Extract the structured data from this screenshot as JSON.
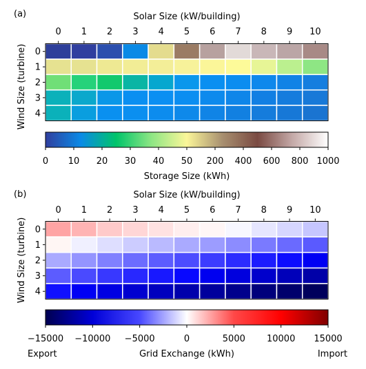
{
  "chart_data": [
    {
      "type": "heatmap",
      "panel_label": "(a)",
      "xlabel": "Solar Size (kW/building)",
      "ylabel": "Wind Size (turbine)",
      "x_ticks": [
        "0",
        "1",
        "2",
        "3",
        "4",
        "5",
        "6",
        "7",
        "8",
        "9",
        "10"
      ],
      "y_ticks": [
        "0",
        "1",
        "2",
        "3",
        "4"
      ],
      "cell_colors": [
        [
          "#2e3f9a",
          "#303f9f",
          "#2b4fae",
          "#0a8ae6",
          "#e4dc8e",
          "#9b7c64",
          "#b7a19f",
          "#e2dad8",
          "#c9b7b8",
          "#bba6a6",
          "#a88a86"
        ],
        [
          "#e6e291",
          "#e6e291",
          "#eee993",
          "#f2ed96",
          "#f3ee98",
          "#f7f29a",
          "#fbf699",
          "#fdfa99",
          "#e7f596",
          "#bbf08f",
          "#8ee684"
        ],
        [
          "#70df77",
          "#25d27a",
          "#12c96d",
          "#0ab5a4",
          "#06a7cf",
          "#0a97ec",
          "#0a8ff1",
          "#0b8df0",
          "#0e88ec",
          "#1183e6",
          "#157edf"
        ],
        [
          "#0bb1ba",
          "#0ba8cc",
          "#0a97e8",
          "#0a8ff1",
          "#0b8ff2",
          "#0b8ef1",
          "#0d8aed",
          "#0f86e9",
          "#127fe3",
          "#157cdd",
          "#1879d8"
        ],
        [
          "#0bb1ba",
          "#0a9edf",
          "#0a90f0",
          "#0b8ff0",
          "#0c8cee",
          "#0e89ea",
          "#1084e6",
          "#1280e1",
          "#157cdc",
          "#1778d7",
          "#1a74d1"
        ]
      ],
      "colorbar": {
        "label": "Storage Size (kWh)",
        "tick_labels": [
          "0",
          "10",
          "20",
          "30",
          "40",
          "50",
          "200",
          "400",
          "600",
          "800",
          "1000"
        ],
        "colors": [
          "#303f9f",
          "#0a8ae6",
          "#00c46a",
          "#8ee684",
          "#fbf699",
          "#a89070",
          "#7a4a42",
          "#c5aaa8",
          "#ffffff"
        ]
      }
    },
    {
      "type": "heatmap",
      "panel_label": "(b)",
      "xlabel": "Solar Size (kW/building)",
      "ylabel": "Wind Size (turbine)",
      "x_ticks": [
        "0",
        "1",
        "2",
        "3",
        "4",
        "5",
        "6",
        "7",
        "8",
        "9",
        "10"
      ],
      "y_ticks": [
        "0",
        "1",
        "2",
        "3",
        "4"
      ],
      "cell_colors": [
        [
          "#ffa4a4",
          "#ffb4b4",
          "#ffcaca",
          "#ffd6d6",
          "#ffe2e2",
          "#ffeeee",
          "#fff6f6",
          "#f7f7ff",
          "#e6e6ff",
          "#d6d6ff",
          "#c6c6ff"
        ],
        [
          "#fff6f4",
          "#f0f0ff",
          "#dedeff",
          "#ccccff",
          "#babaff",
          "#aaaaff",
          "#9c9cff",
          "#8c8cff",
          "#7a7aff",
          "#6a6aff",
          "#5a5aff"
        ],
        [
          "#aaaaff",
          "#9494ff",
          "#8080ff",
          "#6c6cff",
          "#5c5cff",
          "#4c4cff",
          "#3c3cff",
          "#2c2cff",
          "#1c1cff",
          "#0c0cff",
          "#0000f4"
        ],
        [
          "#5c5cff",
          "#4a4aff",
          "#3838ff",
          "#2828ff",
          "#1818ff",
          "#0808ff",
          "#0000f0",
          "#0000de",
          "#0000cc",
          "#0000ba",
          "#0000a8"
        ],
        [
          "#1010ff",
          "#0000f4",
          "#0000e2",
          "#0000d0",
          "#0000be",
          "#0000ac",
          "#00009c",
          "#00008c",
          "#00007c",
          "#00006c",
          "#00005c"
        ]
      ],
      "colorbar": {
        "label": "Grid Exchange (kWh)",
        "tick_labels": [
          "−15000",
          "−10000",
          "−5000",
          "0",
          "5000",
          "10000",
          "15000"
        ],
        "left_end_label": "Export",
        "right_end_label": "Import",
        "colors": [
          "#000050",
          "#0000d8",
          "#4848ff",
          "#ffffff",
          "#ff4848",
          "#ff0000",
          "#800000"
        ]
      }
    }
  ]
}
